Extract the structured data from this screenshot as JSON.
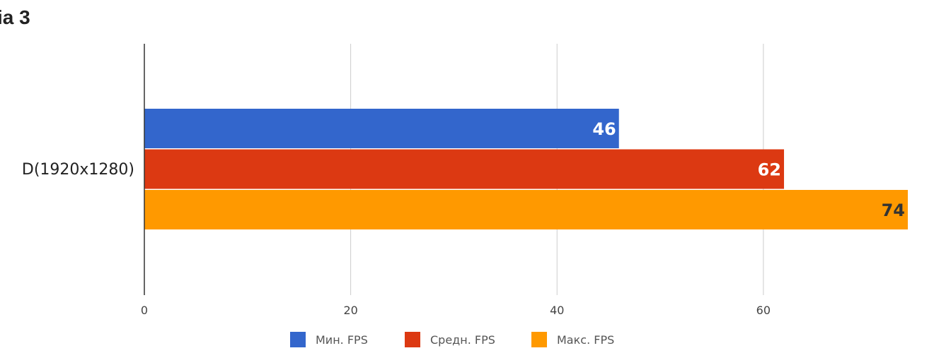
{
  "chart_data": {
    "type": "bar",
    "orientation": "horizontal",
    "title": "ia 3",
    "categories": [
      "D(1920x1280)"
    ],
    "series": [
      {
        "name": "Мин. FPS",
        "values": [
          46
        ],
        "color": "#3366cc",
        "label_color": "#ffffff"
      },
      {
        "name": "Средн. FPS",
        "values": [
          62
        ],
        "color": "#dc3912",
        "label_color": "#ffffff"
      },
      {
        "name": "Макс. FPS",
        "values": [
          74
        ],
        "color": "#ff9900",
        "label_color": "#333333"
      }
    ],
    "xlim": [
      0,
      74
    ],
    "xticks": [
      0,
      20,
      40,
      60
    ],
    "grid": true,
    "legend": "bottom",
    "xlabel": "",
    "ylabel": ""
  }
}
